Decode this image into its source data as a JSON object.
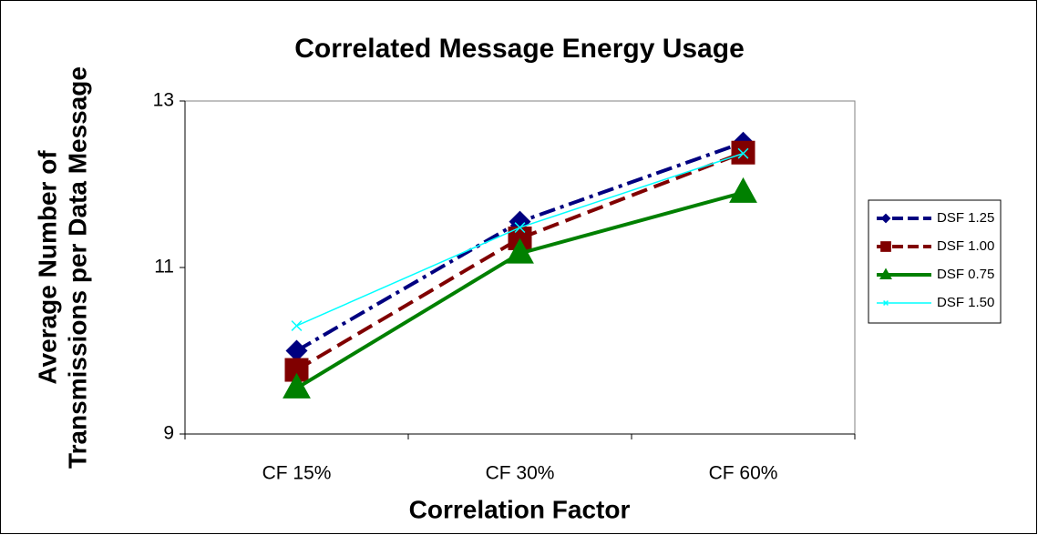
{
  "chart_data": {
    "type": "line",
    "title": "Correlated Message Energy Usage",
    "xlabel": "Correlation Factor",
    "ylabel": [
      "Average Number of",
      "Transmissions per Data Message"
    ],
    "categories": [
      "CF 15%",
      "CF 30%",
      "CF 60%"
    ],
    "ylim": [
      9,
      13
    ],
    "yticks": [
      9,
      11,
      13
    ],
    "series": [
      {
        "name": "DSF 1.25",
        "color": "#000080",
        "dash": "dashdot",
        "marker": "diamond",
        "line_width": 4,
        "values": [
          10.0,
          11.55,
          12.5
        ]
      },
      {
        "name": "DSF 1.00",
        "color": "#800000",
        "dash": "dash",
        "marker": "square",
        "line_width": 4,
        "values": [
          9.77,
          11.35,
          12.38
        ]
      },
      {
        "name": "DSF 0.75",
        "color": "#008000",
        "dash": "solid",
        "marker": "triangle",
        "line_width": 4,
        "values": [
          9.55,
          11.17,
          11.9
        ]
      },
      {
        "name": "DSF 1.50",
        "color": "#00ffff",
        "dash": "solid",
        "marker": "x",
        "line_width": 1.5,
        "values": [
          10.3,
          11.48,
          12.37
        ]
      }
    ]
  }
}
